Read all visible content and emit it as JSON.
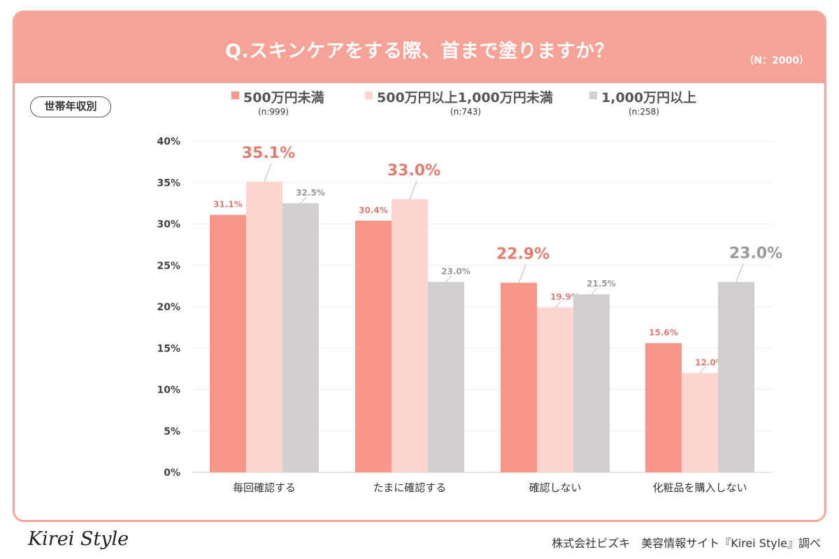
{
  "header": {
    "title": "Q.スキンケアをする際、首まで塗りますか？",
    "sample_size": "（N：2000）"
  },
  "group_label": "世帯年収別",
  "legend": [
    {
      "label": "500万円未満",
      "n": "(n:999)",
      "color": "#f9968a"
    },
    {
      "label": "500万円以上1,000万円未満",
      "n": "(n:743)",
      "color": "#fdd5d0"
    },
    {
      "label": "1,000万円以上",
      "n": "(n:258)",
      "color": "#d1cfd0"
    }
  ],
  "chart_data": {
    "type": "bar",
    "categories": [
      "毎回確認する",
      "たまに確認する",
      "確認しない",
      "化粧品を購入しない"
    ],
    "series": [
      {
        "name": "500万円未満",
        "values": [
          31.1,
          30.4,
          22.9,
          15.6
        ],
        "color": "#f9968a",
        "label_color": "#e27d72"
      },
      {
        "name": "500万円以上1,000万円未満",
        "values": [
          35.1,
          33.0,
          19.9,
          12.0
        ],
        "color": "#fdd5d0",
        "label_color": "#e27d72"
      },
      {
        "name": "1,000万円以上",
        "values": [
          32.5,
          23.0,
          21.5,
          23.0
        ],
        "color": "#d1cfd0",
        "label_color": "#9a9a9a"
      }
    ],
    "data_labels": [
      [
        "31.1%",
        "30.4%",
        "22.9%",
        "15.6%"
      ],
      [
        "35.1%",
        "33.0%",
        "19.9%",
        "12.0%"
      ],
      [
        "32.5%",
        "23.0%",
        "21.5%",
        "23.0%"
      ]
    ],
    "highlight": [
      [
        false,
        false,
        true,
        false
      ],
      [
        true,
        true,
        false,
        false
      ],
      [
        false,
        false,
        false,
        true
      ]
    ],
    "y_ticks": [
      "0%",
      "5%",
      "10%",
      "15%",
      "20%",
      "25%",
      "30%",
      "35%",
      "40%"
    ],
    "ylim": [
      0,
      40
    ],
    "grid": true
  },
  "footer": {
    "logo": "Kirei Style",
    "credit": "株式会社ビズキ　美容情報サイト『Kirei Style』調べ"
  }
}
